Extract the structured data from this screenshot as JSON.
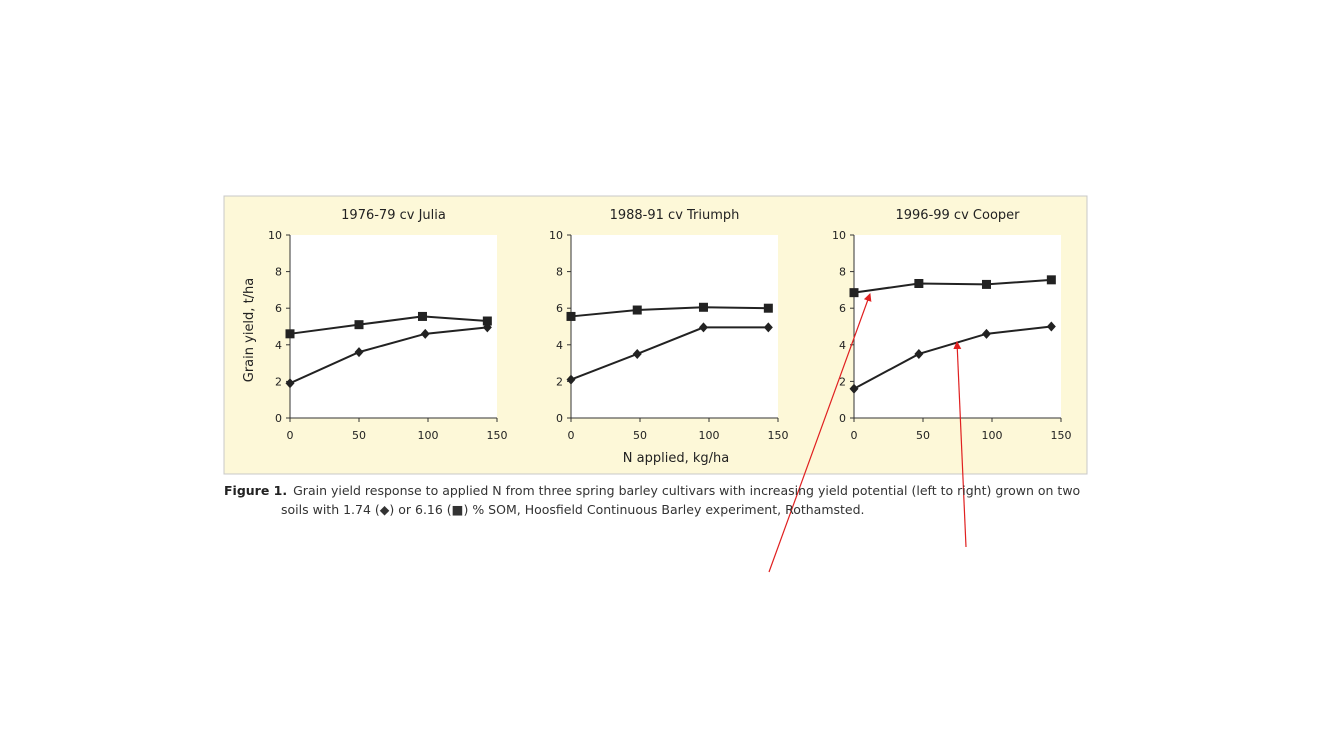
{
  "figure": {
    "caption_label": "Figure 1.",
    "caption_line1": "Grain yield response to applied N from three spring barley cultivars with increasing yield potential (left to right) grown on two",
    "caption_line2": "soils with 1.74 (◆) or 6.16 (■) % SOM, Hoosfield Continuous Barley experiment, Rothamsted.",
    "y_axis_label": "Grain yield, t/ha",
    "x_axis_label": "N applied, kg/ha",
    "panel_background": "#fdf8d8",
    "plot_background": "#ffffff",
    "series_color": "#222222",
    "annotation_color": "#e02020"
  },
  "chart_data": [
    {
      "type": "line",
      "title": "1976-79 cv Julia",
      "x": [
        0,
        50,
        100,
        150
      ],
      "xticks": [
        "0",
        "50",
        "100",
        "150"
      ],
      "yticks": [
        "0",
        "2",
        "4",
        "6",
        "8",
        "10"
      ],
      "xlim": [
        0,
        150
      ],
      "ylim": [
        0,
        10
      ],
      "series": [
        {
          "marker": "diamond",
          "x": [
            0,
            50,
            98,
            143
          ],
          "values": [
            1.9,
            3.6,
            4.6,
            4.95
          ]
        },
        {
          "marker": "square",
          "x": [
            0,
            50,
            96,
            143
          ],
          "values": [
            4.6,
            5.1,
            5.55,
            5.3
          ]
        }
      ]
    },
    {
      "type": "line",
      "title": "1988-91 cv Triumph",
      "x": [
        0,
        50,
        100,
        150
      ],
      "xticks": [
        "0",
        "50",
        "100",
        "150"
      ],
      "yticks": [
        "0",
        "2",
        "4",
        "6",
        "8",
        "10"
      ],
      "xlim": [
        0,
        150
      ],
      "ylim": [
        0,
        10
      ],
      "series": [
        {
          "marker": "diamond",
          "x": [
            0,
            48,
            96,
            143
          ],
          "values": [
            2.1,
            3.5,
            4.95,
            4.95
          ]
        },
        {
          "marker": "square",
          "x": [
            0,
            48,
            96,
            143
          ],
          "values": [
            5.55,
            5.9,
            6.05,
            6.0
          ]
        }
      ]
    },
    {
      "type": "line",
      "title": "1996-99 cv Cooper",
      "x": [
        0,
        50,
        100,
        150
      ],
      "xticks": [
        "0",
        "50",
        "100",
        "150"
      ],
      "yticks": [
        "0",
        "2",
        "4",
        "6",
        "8",
        "10"
      ],
      "xlim": [
        0,
        150
      ],
      "ylim": [
        0,
        10
      ],
      "series": [
        {
          "marker": "diamond",
          "x": [
            0,
            47,
            96,
            143
          ],
          "values": [
            1.6,
            3.5,
            4.6,
            5.0
          ]
        },
        {
          "marker": "square",
          "x": [
            0,
            47,
            96,
            143
          ],
          "values": [
            6.85,
            7.35,
            7.3,
            7.55
          ]
        }
      ]
    }
  ]
}
